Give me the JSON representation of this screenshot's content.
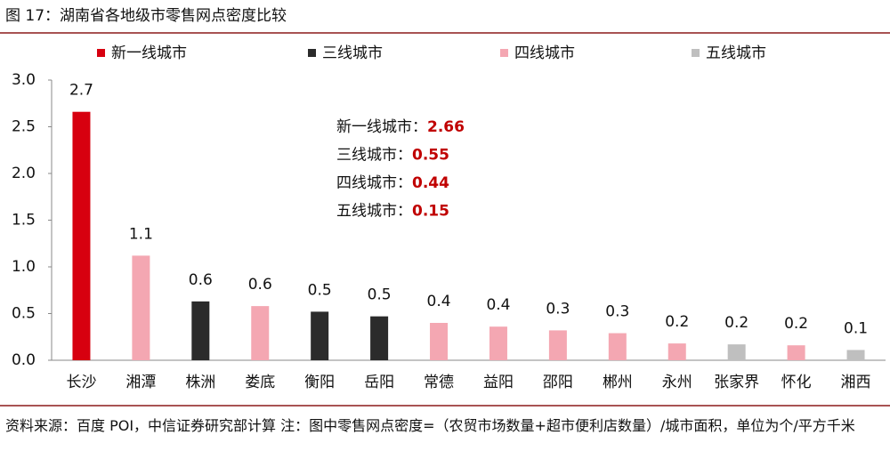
{
  "chart_data": {
    "type": "bar",
    "title": "图 17：湖南省各地级市零售网点密度比较",
    "categories": [
      "长沙",
      "湘潭",
      "株洲",
      "娄底",
      "衡阳",
      "岳阳",
      "常德",
      "益阳",
      "邵阳",
      "郴州",
      "永州",
      "张家界",
      "怀化",
      "湘西"
    ],
    "series": [
      {
        "name": "新一线城市",
        "color": "#d7000f",
        "values": [
          2.66,
          null,
          null,
          null,
          null,
          null,
          null,
          null,
          null,
          null,
          null,
          null,
          null,
          null
        ],
        "value_labels": [
          "2.7",
          null,
          null,
          null,
          null,
          null,
          null,
          null,
          null,
          null,
          null,
          null,
          null,
          null
        ]
      },
      {
        "name": "三线城市",
        "color": "#2b2b2b",
        "values": [
          null,
          null,
          0.63,
          null,
          0.52,
          0.47,
          null,
          null,
          null,
          null,
          null,
          null,
          null,
          null
        ],
        "value_labels": [
          null,
          null,
          "0.6",
          null,
          "0.5",
          "0.5",
          null,
          null,
          null,
          null,
          null,
          null,
          null,
          null
        ]
      },
      {
        "name": "四线城市",
        "color": "#f4a7b2",
        "values": [
          null,
          1.12,
          null,
          0.58,
          null,
          null,
          0.4,
          0.36,
          0.32,
          0.29,
          0.18,
          null,
          0.16,
          null
        ],
        "value_labels": [
          null,
          "1.1",
          null,
          "0.6",
          null,
          null,
          "0.4",
          "0.4",
          "0.3",
          "0.3",
          "0.2",
          null,
          "0.2",
          null
        ]
      },
      {
        "name": "五线城市",
        "color": "#bfbfbf",
        "values": [
          null,
          null,
          null,
          null,
          null,
          null,
          null,
          null,
          null,
          null,
          null,
          0.17,
          null,
          0.11
        ],
        "value_labels": [
          null,
          null,
          null,
          null,
          null,
          null,
          null,
          null,
          null,
          null,
          null,
          "0.2",
          null,
          "0.1"
        ]
      }
    ],
    "ylim": [
      0,
      3
    ],
    "yticks": [
      {
        "value": 0,
        "label": "0.0"
      },
      0.5,
      {
        "value": 1,
        "label": "1.0"
      },
      1.5,
      {
        "value": 2,
        "label": "2.0"
      },
      2.5,
      {
        "value": 3,
        "label": "3.0"
      }
    ],
    "annotations": [
      {
        "label": "新一线城市：",
        "value": 2.66
      },
      {
        "label": "三线城市：",
        "value": 0.55
      },
      {
        "label": "四线城市：",
        "value": 0.44
      },
      {
        "label": "五线城市：",
        "value": 0.15
      }
    ],
    "legend": "top",
    "source": "资料来源：百度 POI，中信证券研究部计算 注：图中零售网点密度=（农贸市场数量+超市便利店数量）/城市面积，单位为个/平方千米"
  }
}
